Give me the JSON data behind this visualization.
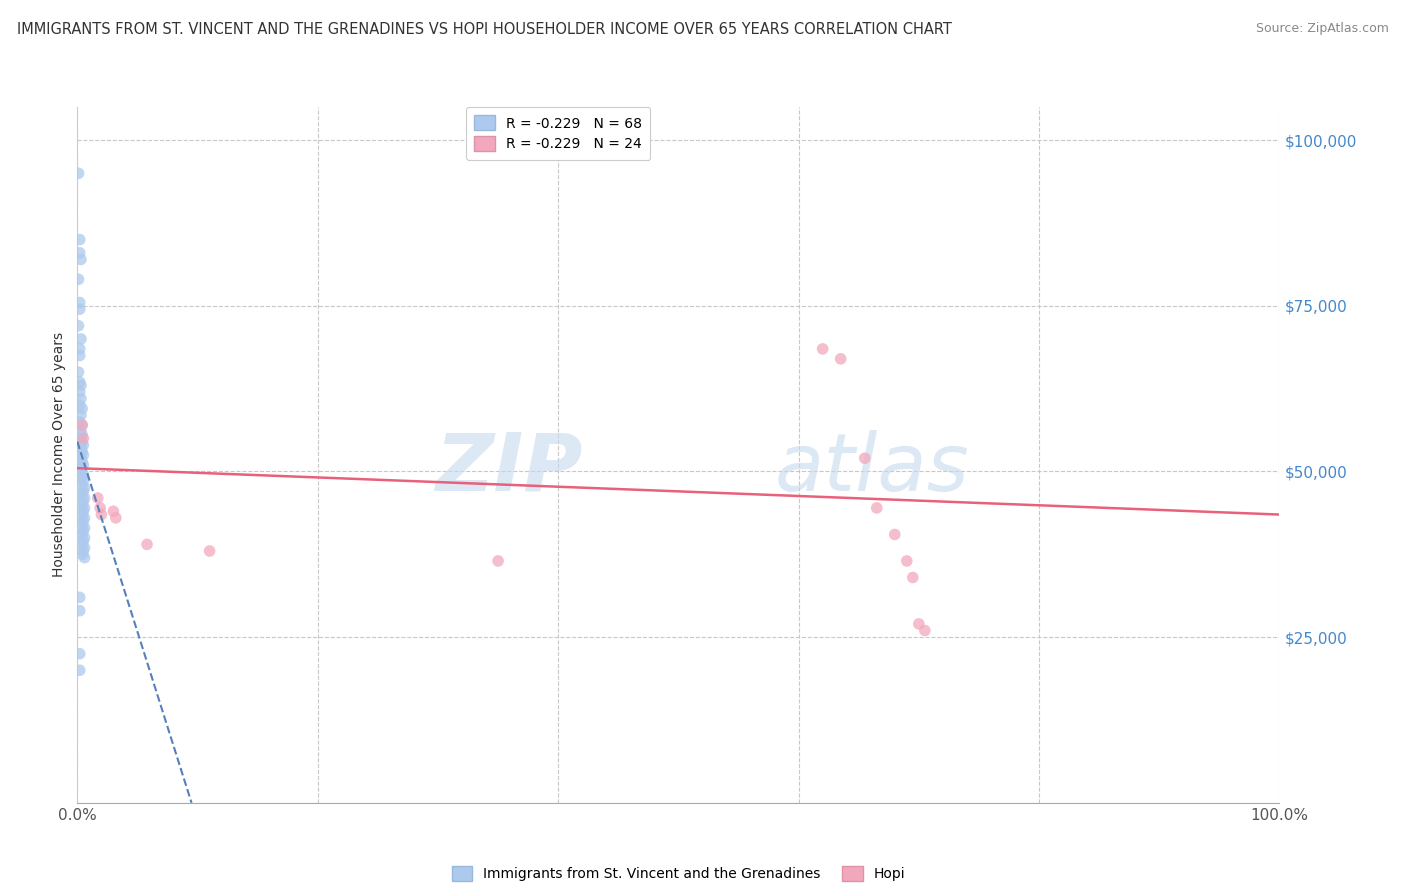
{
  "title": "IMMIGRANTS FROM ST. VINCENT AND THE GRENADINES VS HOPI HOUSEHOLDER INCOME OVER 65 YEARS CORRELATION CHART",
  "source": "Source: ZipAtlas.com",
  "ylabel": "Householder Income Over 65 years",
  "watermark_left": "ZIP",
  "watermark_right": "atlas",
  "legend_entries": [
    {
      "label": "R = -0.229   N = 68",
      "color": "#adc9ed"
    },
    {
      "label": "R = -0.229   N = 24",
      "color": "#f2a8bc"
    }
  ],
  "legend_bottom": [
    {
      "label": "Immigrants from St. Vincent and the Grenadines",
      "color": "#adc9ed"
    },
    {
      "label": "Hopi",
      "color": "#f2a8bc"
    }
  ],
  "blue_dots": [
    [
      0.001,
      95000
    ],
    [
      0.002,
      85000
    ],
    [
      0.002,
      83000
    ],
    [
      0.003,
      82000
    ],
    [
      0.001,
      79000
    ],
    [
      0.002,
      75500
    ],
    [
      0.002,
      74500
    ],
    [
      0.001,
      72000
    ],
    [
      0.003,
      70000
    ],
    [
      0.002,
      68500
    ],
    [
      0.002,
      67500
    ],
    [
      0.001,
      65000
    ],
    [
      0.002,
      63500
    ],
    [
      0.003,
      63000
    ],
    [
      0.002,
      62000
    ],
    [
      0.003,
      61000
    ],
    [
      0.002,
      60000
    ],
    [
      0.004,
      59500
    ],
    [
      0.003,
      58500
    ],
    [
      0.002,
      57500
    ],
    [
      0.004,
      57000
    ],
    [
      0.003,
      56000
    ],
    [
      0.004,
      55500
    ],
    [
      0.003,
      55000
    ],
    [
      0.004,
      54500
    ],
    [
      0.005,
      54000
    ],
    [
      0.003,
      53500
    ],
    [
      0.004,
      53000
    ],
    [
      0.005,
      52500
    ],
    [
      0.003,
      52000
    ],
    [
      0.004,
      51500
    ],
    [
      0.005,
      51000
    ],
    [
      0.004,
      50500
    ],
    [
      0.003,
      50000
    ],
    [
      0.005,
      49500
    ],
    [
      0.004,
      49000
    ],
    [
      0.005,
      48500
    ],
    [
      0.004,
      48000
    ],
    [
      0.006,
      47500
    ],
    [
      0.005,
      47000
    ],
    [
      0.004,
      46500
    ],
    [
      0.006,
      46000
    ],
    [
      0.005,
      45500
    ],
    [
      0.004,
      45000
    ],
    [
      0.006,
      44500
    ],
    [
      0.005,
      44000
    ],
    [
      0.004,
      43500
    ],
    [
      0.006,
      43000
    ],
    [
      0.005,
      42500
    ],
    [
      0.004,
      42000
    ],
    [
      0.006,
      41500
    ],
    [
      0.005,
      41000
    ],
    [
      0.004,
      40500
    ],
    [
      0.006,
      40000
    ],
    [
      0.005,
      39500
    ],
    [
      0.004,
      39000
    ],
    [
      0.006,
      38500
    ],
    [
      0.005,
      38000
    ],
    [
      0.004,
      37500
    ],
    [
      0.006,
      37000
    ],
    [
      0.002,
      31000
    ],
    [
      0.002,
      29000
    ],
    [
      0.002,
      22500
    ],
    [
      0.002,
      20000
    ]
  ],
  "pink_dots": [
    [
      0.004,
      57000
    ],
    [
      0.005,
      55000
    ],
    [
      0.017,
      46000
    ],
    [
      0.019,
      44500
    ],
    [
      0.02,
      43500
    ],
    [
      0.03,
      44000
    ],
    [
      0.032,
      43000
    ],
    [
      0.058,
      39000
    ],
    [
      0.11,
      38000
    ],
    [
      0.35,
      36500
    ],
    [
      0.62,
      68500
    ],
    [
      0.635,
      67000
    ],
    [
      0.655,
      52000
    ],
    [
      0.665,
      44500
    ],
    [
      0.68,
      40500
    ],
    [
      0.69,
      36500
    ],
    [
      0.695,
      34000
    ],
    [
      0.7,
      27000
    ],
    [
      0.705,
      26000
    ]
  ],
  "blue_line_x": [
    0.0,
    0.095
  ],
  "blue_line_y": [
    54500,
    0
  ],
  "pink_line_x": [
    0.0,
    1.0
  ],
  "pink_line_y": [
    50500,
    43500
  ],
  "xlim": [
    0.0,
    1.0
  ],
  "ylim": [
    0,
    105000
  ],
  "yticks": [
    0,
    25000,
    50000,
    75000,
    100000
  ],
  "ytick_labels": [
    "",
    "$25,000",
    "$50,000",
    "$75,000",
    "$100,000"
  ],
  "xticks": [
    0.0,
    0.2,
    0.4,
    0.6,
    0.8,
    1.0
  ],
  "xtick_labels": [
    "0.0%",
    "",
    "",
    "",
    "",
    "100.0%"
  ],
  "grid_color": "#c8c8c8",
  "background_color": "#ffffff",
  "blue_dot_color": "#adc9ed",
  "pink_dot_color": "#f2a8bc",
  "blue_line_color": "#5580bb",
  "pink_line_color": "#e8607a",
  "axis_tick_color": "#4488cc",
  "title_color": "#333333",
  "source_color": "#888888",
  "dot_size": 70
}
